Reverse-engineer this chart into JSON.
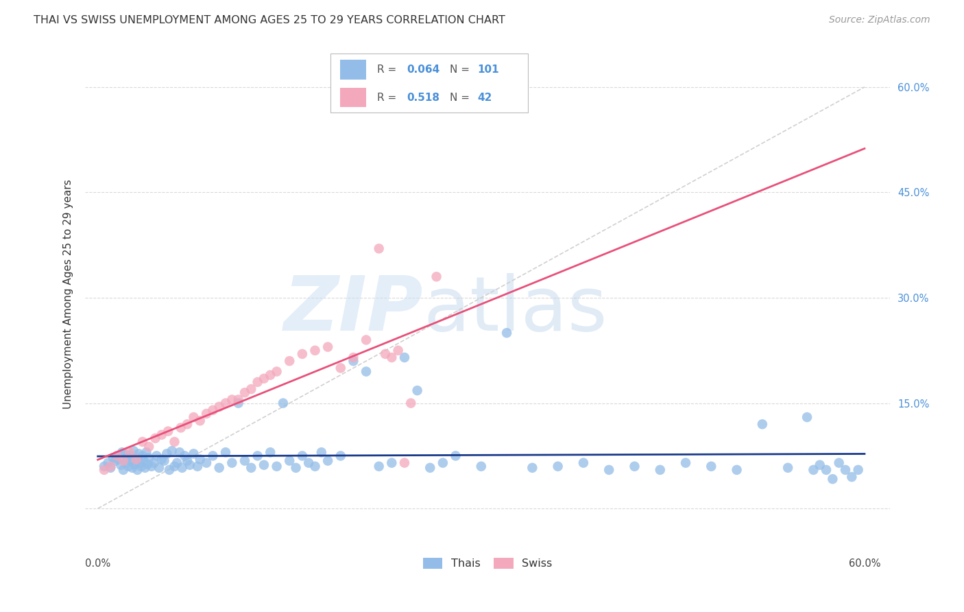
{
  "title": "THAI VS SWISS UNEMPLOYMENT AMONG AGES 25 TO 29 YEARS CORRELATION CHART",
  "source": "Source: ZipAtlas.com",
  "ylabel": "Unemployment Among Ages 25 to 29 years",
  "xlim": [
    -0.01,
    0.62
  ],
  "ylim": [
    -0.06,
    0.67
  ],
  "xticks": [
    0.0,
    0.1,
    0.2,
    0.3,
    0.4,
    0.5,
    0.6
  ],
  "yticks": [
    0.0,
    0.15,
    0.3,
    0.45,
    0.6
  ],
  "ytick_labels": [
    "",
    "15.0%",
    "30.0%",
    "45.0%",
    "60.0%"
  ],
  "xtick_labels": [
    "0.0%",
    "",
    "",
    "",
    "",
    "",
    "60.0%"
  ],
  "thai_color": "#93bde8",
  "swiss_color": "#f4a8bc",
  "thai_R": 0.064,
  "thai_N": 101,
  "swiss_R": 0.518,
  "swiss_N": 42,
  "legend_label_thai": "Thais",
  "legend_label_swiss": "Swiss",
  "background_color": "#ffffff",
  "grid_color": "#d0d0d0",
  "title_color": "#333333",
  "source_color": "#999999",
  "tick_label_color_x": "#444444",
  "tick_label_color_y": "#4a90d9",
  "trend_thai_color": "#1a3a8a",
  "trend_swiss_color": "#e8507a",
  "diagonal_color": "#d0d0d0",
  "legend_text_color": "#4a90d9",
  "thai_x": [
    0.005,
    0.008,
    0.01,
    0.012,
    0.014,
    0.015,
    0.016,
    0.018,
    0.019,
    0.02,
    0.021,
    0.022,
    0.023,
    0.024,
    0.025,
    0.026,
    0.027,
    0.028,
    0.029,
    0.03,
    0.031,
    0.032,
    0.033,
    0.034,
    0.035,
    0.036,
    0.037,
    0.038,
    0.039,
    0.04,
    0.042,
    0.044,
    0.046,
    0.048,
    0.05,
    0.052,
    0.054,
    0.056,
    0.058,
    0.06,
    0.062,
    0.064,
    0.066,
    0.068,
    0.07,
    0.072,
    0.075,
    0.078,
    0.08,
    0.085,
    0.09,
    0.095,
    0.1,
    0.105,
    0.11,
    0.115,
    0.12,
    0.125,
    0.13,
    0.135,
    0.14,
    0.145,
    0.15,
    0.155,
    0.16,
    0.165,
    0.17,
    0.175,
    0.18,
    0.19,
    0.2,
    0.21,
    0.22,
    0.23,
    0.24,
    0.25,
    0.26,
    0.27,
    0.28,
    0.3,
    0.32,
    0.34,
    0.36,
    0.38,
    0.4,
    0.42,
    0.44,
    0.46,
    0.48,
    0.5,
    0.52,
    0.54,
    0.555,
    0.56,
    0.565,
    0.57,
    0.575,
    0.58,
    0.585,
    0.59,
    0.595
  ],
  "thai_y": [
    0.06,
    0.065,
    0.058,
    0.072,
    0.068,
    0.075,
    0.07,
    0.062,
    0.08,
    0.055,
    0.078,
    0.065,
    0.072,
    0.06,
    0.075,
    0.068,
    0.058,
    0.082,
    0.063,
    0.07,
    0.055,
    0.078,
    0.065,
    0.06,
    0.075,
    0.068,
    0.058,
    0.08,
    0.063,
    0.072,
    0.06,
    0.065,
    0.075,
    0.058,
    0.07,
    0.068,
    0.078,
    0.055,
    0.082,
    0.06,
    0.065,
    0.08,
    0.058,
    0.075,
    0.068,
    0.062,
    0.078,
    0.06,
    0.07,
    0.065,
    0.075,
    0.058,
    0.08,
    0.065,
    0.15,
    0.068,
    0.058,
    0.075,
    0.062,
    0.08,
    0.06,
    0.15,
    0.068,
    0.058,
    0.075,
    0.065,
    0.06,
    0.08,
    0.068,
    0.075,
    0.21,
    0.195,
    0.06,
    0.065,
    0.215,
    0.168,
    0.058,
    0.065,
    0.075,
    0.06,
    0.25,
    0.058,
    0.06,
    0.065,
    0.055,
    0.06,
    0.055,
    0.065,
    0.06,
    0.055,
    0.12,
    0.058,
    0.13,
    0.055,
    0.062,
    0.055,
    0.042,
    0.065,
    0.055,
    0.045,
    0.055
  ],
  "swiss_x": [
    0.005,
    0.01,
    0.015,
    0.02,
    0.025,
    0.03,
    0.035,
    0.04,
    0.045,
    0.05,
    0.055,
    0.06,
    0.065,
    0.07,
    0.075,
    0.08,
    0.085,
    0.09,
    0.095,
    0.1,
    0.105,
    0.11,
    0.115,
    0.12,
    0.125,
    0.13,
    0.135,
    0.14,
    0.15,
    0.16,
    0.17,
    0.18,
    0.19,
    0.2,
    0.21,
    0.22,
    0.225,
    0.23,
    0.235,
    0.24,
    0.245,
    0.265
  ],
  "swiss_y": [
    0.055,
    0.06,
    0.075,
    0.068,
    0.08,
    0.07,
    0.095,
    0.088,
    0.1,
    0.105,
    0.11,
    0.095,
    0.115,
    0.12,
    0.13,
    0.125,
    0.135,
    0.14,
    0.145,
    0.15,
    0.155,
    0.155,
    0.165,
    0.17,
    0.18,
    0.185,
    0.19,
    0.195,
    0.21,
    0.22,
    0.225,
    0.23,
    0.2,
    0.215,
    0.24,
    0.37,
    0.22,
    0.215,
    0.225,
    0.065,
    0.15,
    0.33
  ]
}
